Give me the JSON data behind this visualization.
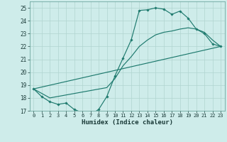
{
  "xlabel": "Humidex (Indice chaleur)",
  "background_color": "#ceecea",
  "grid_color": "#b0d4d0",
  "line_color": "#1e7a6e",
  "ylim": [
    17,
    25.5
  ],
  "xlim": [
    -0.5,
    23.5
  ],
  "yticks": [
    17,
    18,
    19,
    20,
    21,
    22,
    23,
    24,
    25
  ],
  "xticks": [
    0,
    1,
    2,
    3,
    4,
    5,
    6,
    7,
    8,
    9,
    10,
    11,
    12,
    13,
    14,
    15,
    16,
    17,
    18,
    19,
    20,
    21,
    22,
    23
  ],
  "curve1_x": [
    0,
    1,
    2,
    3,
    4,
    5,
    6,
    7,
    8,
    9,
    10,
    11,
    12,
    13,
    14,
    15,
    16,
    17,
    18,
    19,
    20,
    21,
    22,
    23
  ],
  "curve1_y": [
    18.7,
    18.1,
    17.7,
    17.5,
    17.6,
    17.1,
    16.85,
    16.7,
    17.1,
    18.1,
    19.7,
    21.1,
    22.5,
    24.8,
    24.85,
    25.0,
    24.9,
    24.5,
    24.75,
    24.2,
    23.35,
    23.0,
    22.2,
    22.0
  ],
  "curve2_x": [
    0,
    2,
    9,
    10,
    11,
    12,
    13,
    14,
    15,
    16,
    17,
    18,
    19,
    20,
    21,
    22,
    23
  ],
  "curve2_y": [
    18.7,
    18.0,
    18.8,
    19.5,
    20.5,
    21.2,
    22.0,
    22.5,
    22.9,
    23.1,
    23.2,
    23.35,
    23.45,
    23.35,
    23.1,
    22.5,
    22.0
  ],
  "curve3_x": [
    0,
    23
  ],
  "curve3_y": [
    18.7,
    22.0
  ]
}
